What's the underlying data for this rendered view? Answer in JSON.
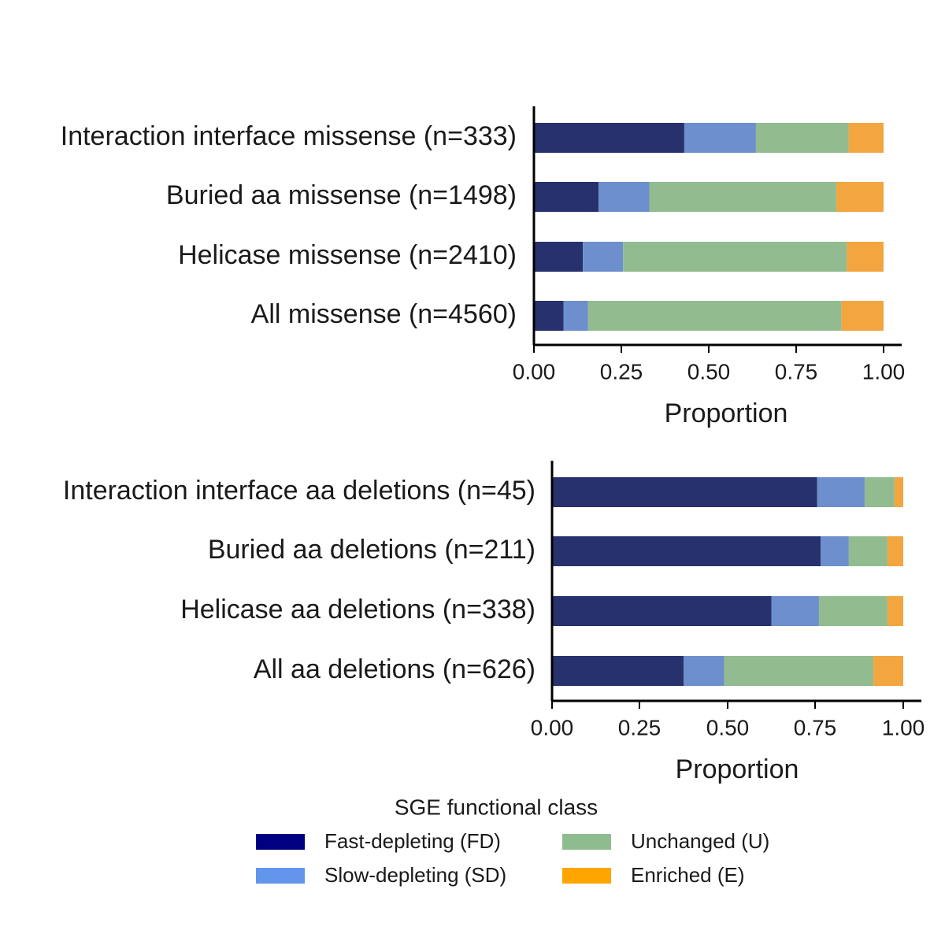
{
  "chart_data": [
    {
      "type": "bar",
      "orientation": "horizontal",
      "stacked": true,
      "categories": [
        "Interaction interface missense (n=333)",
        "Buried aa missense (n=1498)",
        "Helicase missense (n=2410)",
        "All missense (n=4560)"
      ],
      "series": [
        {
          "name": "Fast-depleting (FD)",
          "values": [
            0.43,
            0.185,
            0.14,
            0.085
          ]
        },
        {
          "name": "Slow-depleting (SD)",
          "values": [
            0.205,
            0.145,
            0.115,
            0.07
          ]
        },
        {
          "name": "Unchanged (U)",
          "values": [
            0.265,
            0.535,
            0.64,
            0.725
          ]
        },
        {
          "name": "Enriched (E)",
          "values": [
            0.1,
            0.135,
            0.105,
            0.12
          ]
        }
      ],
      "xlabel": "Proportion",
      "xticks": [
        "0.00",
        "0.25",
        "0.50",
        "0.75",
        "1.00"
      ],
      "xlim": [
        0,
        1
      ]
    },
    {
      "type": "bar",
      "orientation": "horizontal",
      "stacked": true,
      "categories": [
        "Interaction interface aa deletions (n=45)",
        "Buried aa deletions (n=211)",
        "Helicase aa deletions (n=338)",
        "All aa deletions (n=626)"
      ],
      "series": [
        {
          "name": "Fast-depleting (FD)",
          "values": [
            0.755,
            0.765,
            0.625,
            0.375
          ]
        },
        {
          "name": "Slow-depleting (SD)",
          "values": [
            0.135,
            0.08,
            0.135,
            0.115
          ]
        },
        {
          "name": "Unchanged (U)",
          "values": [
            0.085,
            0.11,
            0.195,
            0.425
          ]
        },
        {
          "name": "Enriched (E)",
          "values": [
            0.025,
            0.045,
            0.045,
            0.085
          ]
        }
      ],
      "xlabel": "Proportion",
      "xticks": [
        "0.00",
        "0.25",
        "0.50",
        "0.75",
        "1.00"
      ],
      "xlim": [
        0,
        1
      ]
    }
  ],
  "legend": {
    "title": "SGE functional class",
    "placement": "bottom",
    "items": [
      {
        "label": "Fast-depleting (FD)",
        "color": "#000080"
      },
      {
        "label": "Slow-depleting (SD)",
        "color": "#6495ED"
      },
      {
        "label": "Unchanged (U)",
        "color": "#8FBC8F"
      },
      {
        "label": "Enriched (E)",
        "color": "#FFA500"
      }
    ]
  },
  "bar_colors": [
    "#26316d",
    "#6d8fcd",
    "#92bc8f",
    "#f3a540"
  ]
}
